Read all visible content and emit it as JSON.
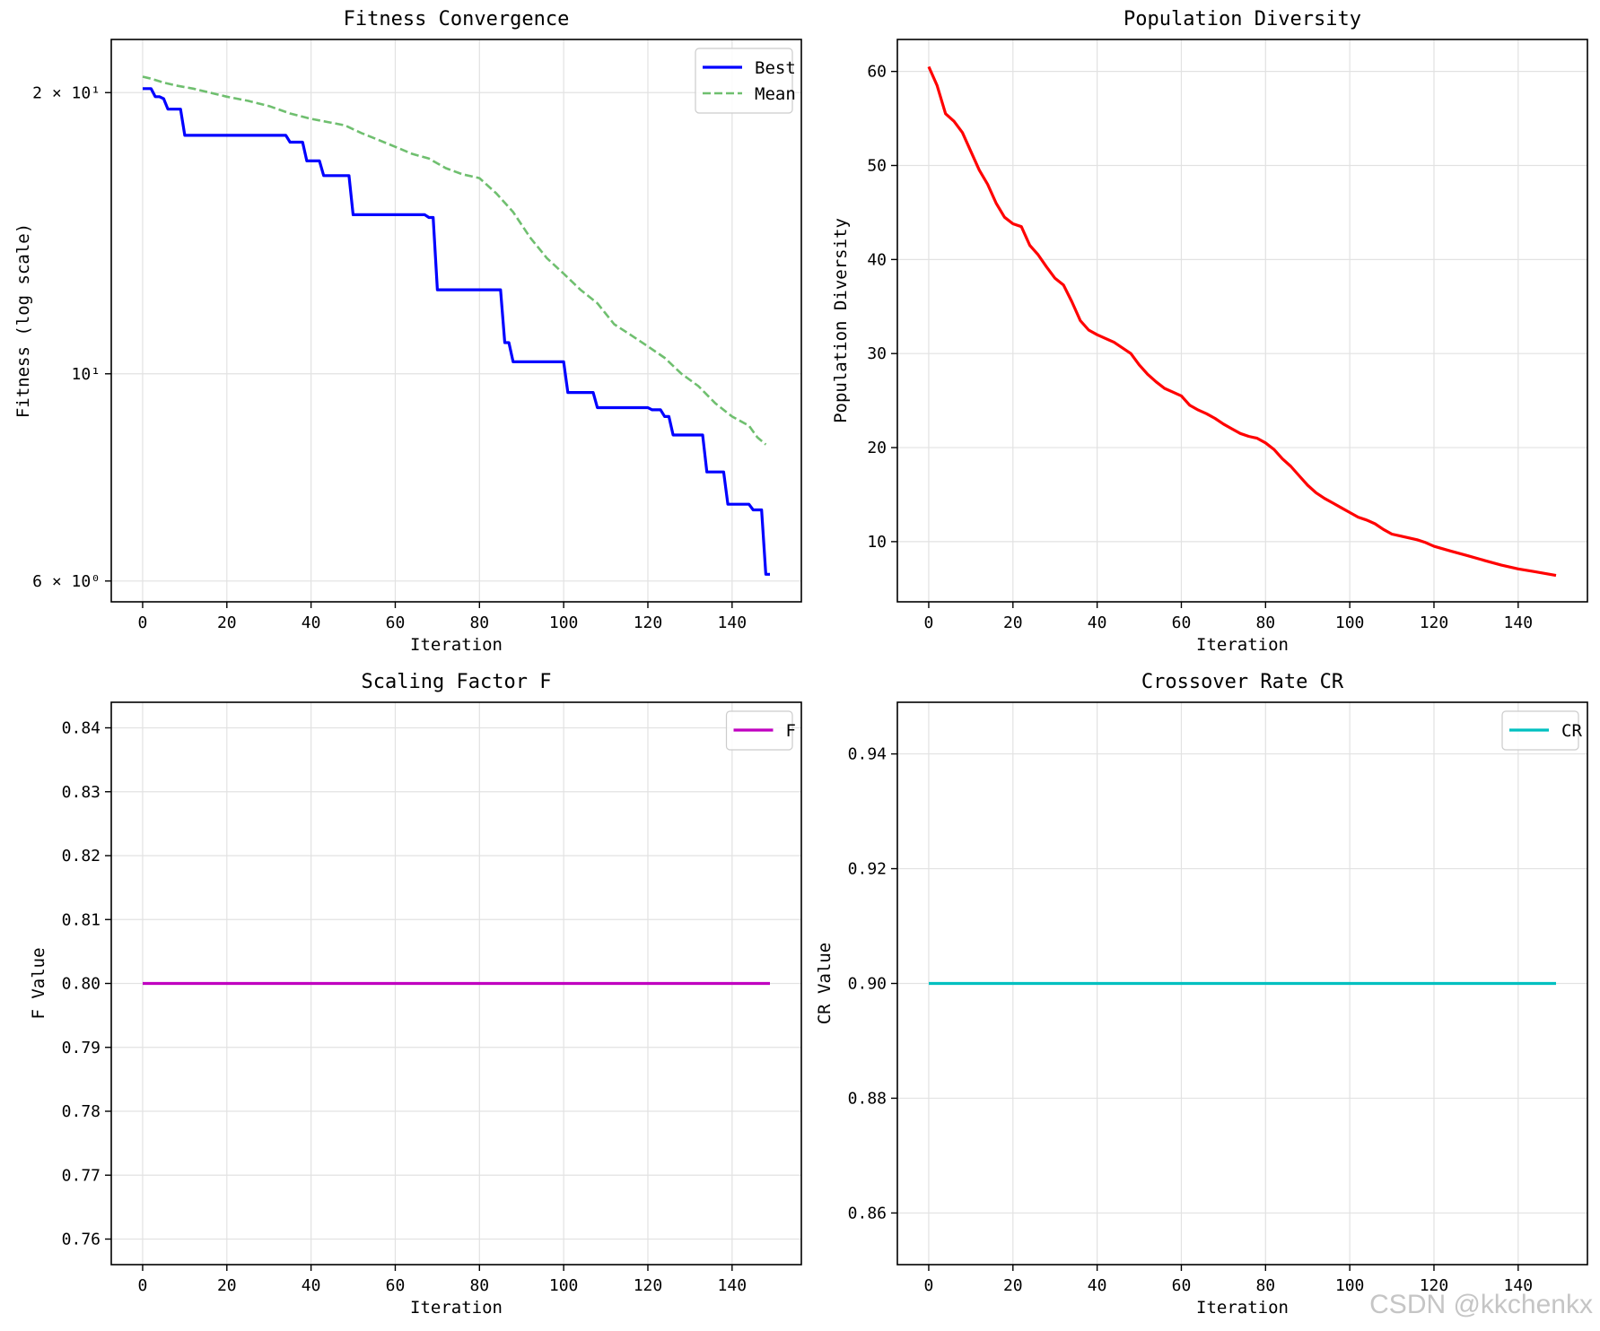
{
  "watermark": "CSDN @kkchenkx",
  "chart_data": [
    {
      "type": "line",
      "id": "fitness",
      "title": "Fitness Convergence",
      "xlabel": "Iteration",
      "ylabel": "Fitness (log scale)",
      "yscale": "log",
      "xlim": [
        -7.45,
        156.45
      ],
      "ylim": [
        5.7,
        22.8
      ],
      "xticks": [
        0,
        20,
        40,
        60,
        80,
        100,
        120,
        140
      ],
      "yticks": [
        {
          "value": 20,
          "label": "2 × 10¹"
        },
        {
          "value": 10,
          "label": "10¹"
        },
        {
          "value": 6,
          "label": "6 × 10⁰"
        }
      ],
      "grid": true,
      "legend": "top-right",
      "series": [
        {
          "name": "Best",
          "color": "#0000ff",
          "dash": "solid",
          "width": 3.2,
          "points": [
            [
              0,
              20.2
            ],
            [
              2,
              20.2
            ],
            [
              3,
              19.8
            ],
            [
              4,
              19.8
            ],
            [
              5,
              19.7
            ],
            [
              6,
              19.2
            ],
            [
              9,
              19.2
            ],
            [
              10,
              18.0
            ],
            [
              34,
              18.0
            ],
            [
              35,
              17.7
            ],
            [
              38,
              17.7
            ],
            [
              39,
              16.9
            ],
            [
              42,
              16.9
            ],
            [
              43,
              16.3
            ],
            [
              49,
              16.3
            ],
            [
              50,
              14.8
            ],
            [
              67,
              14.8
            ],
            [
              68,
              14.7
            ],
            [
              69,
              14.7
            ],
            [
              70,
              12.3
            ],
            [
              85,
              12.3
            ],
            [
              86,
              10.8
            ],
            [
              87,
              10.8
            ],
            [
              88,
              10.3
            ],
            [
              100,
              10.3
            ],
            [
              101,
              9.55
            ],
            [
              107,
              9.55
            ],
            [
              108,
              9.2
            ],
            [
              120,
              9.2
            ],
            [
              121,
              9.15
            ],
            [
              123,
              9.15
            ],
            [
              124,
              9.0
            ],
            [
              125,
              9.0
            ],
            [
              126,
              8.6
            ],
            [
              133,
              8.6
            ],
            [
              134,
              7.85
            ],
            [
              138,
              7.85
            ],
            [
              139,
              7.25
            ],
            [
              144,
              7.25
            ],
            [
              145,
              7.15
            ],
            [
              147,
              7.15
            ],
            [
              148,
              6.1
            ],
            [
              149,
              6.1
            ]
          ]
        },
        {
          "name": "Mean",
          "color": "#6fbf6f",
          "dash": "dashed",
          "width": 2.6,
          "points": [
            [
              0,
              20.8
            ],
            [
              2,
              20.7
            ],
            [
              5,
              20.5
            ],
            [
              8,
              20.35
            ],
            [
              12,
              20.2
            ],
            [
              16,
              20.0
            ],
            [
              20,
              19.8
            ],
            [
              25,
              19.6
            ],
            [
              30,
              19.35
            ],
            [
              35,
              19.0
            ],
            [
              40,
              18.75
            ],
            [
              44,
              18.6
            ],
            [
              48,
              18.45
            ],
            [
              52,
              18.1
            ],
            [
              56,
              17.8
            ],
            [
              60,
              17.5
            ],
            [
              64,
              17.2
            ],
            [
              68,
              17.0
            ],
            [
              72,
              16.6
            ],
            [
              76,
              16.35
            ],
            [
              80,
              16.2
            ],
            [
              84,
              15.6
            ],
            [
              88,
              14.9
            ],
            [
              92,
              14.0
            ],
            [
              96,
              13.3
            ],
            [
              100,
              12.8
            ],
            [
              104,
              12.3
            ],
            [
              108,
              11.9
            ],
            [
              112,
              11.3
            ],
            [
              116,
              11.0
            ],
            [
              120,
              10.7
            ],
            [
              124,
              10.4
            ],
            [
              128,
              10.0
            ],
            [
              132,
              9.7
            ],
            [
              136,
              9.3
            ],
            [
              140,
              9.0
            ],
            [
              144,
              8.8
            ],
            [
              146,
              8.55
            ],
            [
              148,
              8.4
            ]
          ]
        }
      ]
    },
    {
      "type": "line",
      "id": "diversity",
      "title": "Population Diversity",
      "xlabel": "Iteration",
      "ylabel": "Population Diversity",
      "yscale": "linear",
      "xlim": [
        -7.45,
        156.45
      ],
      "ylim": [
        3.6,
        63.4
      ],
      "xticks": [
        0,
        20,
        40,
        60,
        80,
        100,
        120,
        140
      ],
      "yticks": [
        10,
        20,
        30,
        40,
        50,
        60
      ],
      "grid": true,
      "legend": "none",
      "series": [
        {
          "name": "Diversity",
          "color": "#ff0000",
          "dash": "solid",
          "width": 3.2,
          "points": [
            [
              0,
              60.5
            ],
            [
              2,
              58.5
            ],
            [
              4,
              55.5
            ],
            [
              6,
              54.7
            ],
            [
              8,
              53.5
            ],
            [
              10,
              51.5
            ],
            [
              12,
              49.5
            ],
            [
              14,
              48.0
            ],
            [
              16,
              46.0
            ],
            [
              18,
              44.5
            ],
            [
              20,
              43.8
            ],
            [
              22,
              43.5
            ],
            [
              24,
              41.5
            ],
            [
              26,
              40.5
            ],
            [
              28,
              39.2
            ],
            [
              30,
              38.0
            ],
            [
              32,
              37.3
            ],
            [
              34,
              35.5
            ],
            [
              36,
              33.5
            ],
            [
              38,
              32.5
            ],
            [
              40,
              32.0
            ],
            [
              44,
              31.2
            ],
            [
              48,
              30.0
            ],
            [
              50,
              28.8
            ],
            [
              52,
              27.8
            ],
            [
              54,
              27.0
            ],
            [
              56,
              26.3
            ],
            [
              58,
              25.9
            ],
            [
              60,
              25.5
            ],
            [
              62,
              24.5
            ],
            [
              64,
              24.0
            ],
            [
              66,
              23.6
            ],
            [
              68,
              23.1
            ],
            [
              70,
              22.5
            ],
            [
              72,
              22.0
            ],
            [
              74,
              21.5
            ],
            [
              76,
              21.2
            ],
            [
              78,
              21.0
            ],
            [
              80,
              20.5
            ],
            [
              82,
              19.8
            ],
            [
              84,
              18.8
            ],
            [
              86,
              18.0
            ],
            [
              88,
              17.0
            ],
            [
              90,
              16.0
            ],
            [
              92,
              15.2
            ],
            [
              94,
              14.6
            ],
            [
              96,
              14.1
            ],
            [
              98,
              13.6
            ],
            [
              100,
              13.1
            ],
            [
              102,
              12.6
            ],
            [
              104,
              12.3
            ],
            [
              106,
              11.9
            ],
            [
              108,
              11.3
            ],
            [
              110,
              10.8
            ],
            [
              112,
              10.6
            ],
            [
              114,
              10.4
            ],
            [
              116,
              10.2
            ],
            [
              118,
              9.9
            ],
            [
              120,
              9.5
            ],
            [
              124,
              9.0
            ],
            [
              128,
              8.5
            ],
            [
              132,
              8.0
            ],
            [
              136,
              7.5
            ],
            [
              140,
              7.1
            ],
            [
              144,
              6.8
            ],
            [
              149,
              6.4
            ]
          ]
        }
      ]
    },
    {
      "type": "line",
      "id": "scaling",
      "title": "Scaling Factor F",
      "xlabel": "Iteration",
      "ylabel": "F Value",
      "yscale": "linear",
      "xlim": [
        -7.45,
        156.45
      ],
      "ylim": [
        0.756,
        0.844
      ],
      "xticks": [
        0,
        20,
        40,
        60,
        80,
        100,
        120,
        140
      ],
      "yticks": [
        0.76,
        0.77,
        0.78,
        0.79,
        0.8,
        0.81,
        0.82,
        0.83,
        0.84
      ],
      "grid": true,
      "legend": "top-right",
      "series": [
        {
          "name": "F",
          "color": "#c000c0",
          "dash": "solid",
          "width": 3.2,
          "points": [
            [
              0,
              0.8
            ],
            [
              149,
              0.8
            ]
          ]
        }
      ]
    },
    {
      "type": "line",
      "id": "crossover",
      "title": "Crossover Rate CR",
      "xlabel": "Iteration",
      "ylabel": "CR Value",
      "yscale": "linear",
      "xlim": [
        -7.45,
        156.45
      ],
      "ylim": [
        0.851,
        0.949
      ],
      "xticks": [
        0,
        20,
        40,
        60,
        80,
        100,
        120,
        140
      ],
      "yticks": [
        0.86,
        0.88,
        0.9,
        0.92,
        0.94
      ],
      "grid": true,
      "legend": "top-right",
      "series": [
        {
          "name": "CR",
          "color": "#00c0c0",
          "dash": "solid",
          "width": 3.2,
          "points": [
            [
              0,
              0.9
            ],
            [
              149,
              0.9
            ]
          ]
        }
      ]
    }
  ]
}
